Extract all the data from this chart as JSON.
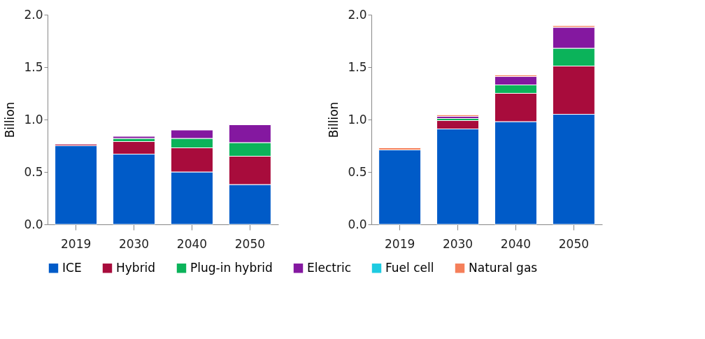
{
  "chart_data": [
    {
      "type": "bar",
      "stacked": true,
      "ylabel": "Billion",
      "categories": [
        "2019",
        "2030",
        "2040",
        "2050"
      ],
      "ylim": [
        0,
        2
      ],
      "yticks": [
        {
          "value": 0,
          "label": "0.0"
        },
        {
          "value": 0.5,
          "label": "0.5"
        },
        {
          "value": 1,
          "label": "1.0"
        },
        {
          "value": 1.5,
          "label": "1.5"
        },
        {
          "value": 2,
          "label": "2.0"
        }
      ],
      "grid": false,
      "legend": "bottom",
      "series": [
        {
          "name": "ICE",
          "color": "#005bc8",
          "values": [
            0.75,
            0.67,
            0.5,
            0.38
          ]
        },
        {
          "name": "Hybrid",
          "color": "#a80c3c",
          "values": [
            0.015,
            0.12,
            0.23,
            0.27
          ]
        },
        {
          "name": "Plug-in hybrid",
          "color": "#0bb35a",
          "values": [
            null,
            0.03,
            0.09,
            0.13
          ]
        },
        {
          "name": "Electric",
          "color": "#8418a0",
          "values": [
            null,
            0.02,
            0.08,
            0.17
          ]
        }
      ]
    },
    {
      "type": "bar",
      "stacked": true,
      "ylabel": "Billion",
      "categories": [
        "2019",
        "2030",
        "2040",
        "2050"
      ],
      "ylim": [
        0,
        2
      ],
      "yticks": [
        {
          "value": 0,
          "label": "0.0"
        },
        {
          "value": 0.5,
          "label": "0.5"
        },
        {
          "value": 1,
          "label": "1.0"
        },
        {
          "value": 1.5,
          "label": "1.5"
        },
        {
          "value": 2,
          "label": "2.0"
        }
      ],
      "grid": false,
      "legend": "bottom",
      "series": [
        {
          "name": "ICE",
          "color": "#005bc8",
          "values": [
            0.71,
            0.91,
            0.98,
            1.05
          ]
        },
        {
          "name": "Hybrid",
          "color": "#a80c3c",
          "values": [
            null,
            0.08,
            0.27,
            0.46
          ]
        },
        {
          "name": "Plug-in hybrid",
          "color": "#0bb35a",
          "values": [
            null,
            0.02,
            0.08,
            0.17
          ]
        },
        {
          "name": "Electric",
          "color": "#8418a0",
          "values": [
            null,
            0.02,
            0.08,
            0.2
          ]
        },
        {
          "name": "Fuel cell",
          "color": "#1ecbe1",
          "values": [
            null,
            null,
            null,
            null
          ]
        },
        {
          "name": "Natural gas",
          "color": "#f57f5a",
          "values": [
            0.02,
            0.015,
            0.015,
            0.015
          ]
        }
      ]
    }
  ]
}
